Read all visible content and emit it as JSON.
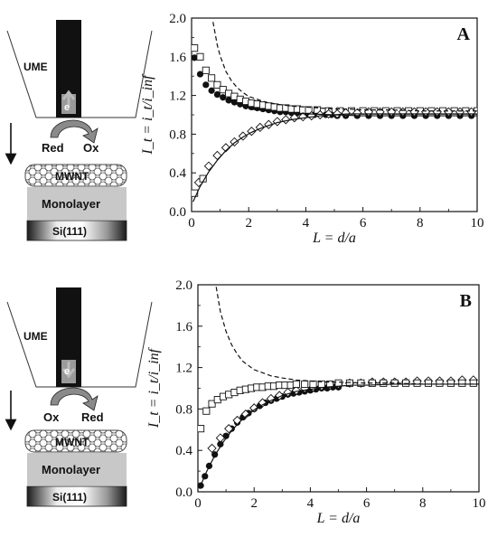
{
  "schematic_A": {
    "ume_label": "UME",
    "electron_label": "e",
    "reactant_label": "Red",
    "product_label": "Ox",
    "mwnt_label": "MWNT",
    "monolayer_label": "Monolayer",
    "substrate_label": "Si(111)"
  },
  "schematic_B": {
    "ume_label": "UME",
    "electron_label": "e",
    "reactant_label": "Ox",
    "product_label": "Red",
    "mwnt_label": "MWNT",
    "monolayer_label": "Monolayer",
    "substrate_label": "Si(111)"
  },
  "colors": {
    "ink": "#111111",
    "tip_gray": "#8a8a8a",
    "monolayer_gray": "#c8c8c8",
    "arrow_gray": "#7a7a7a"
  },
  "chart_data": [
    {
      "type": "scatter",
      "panel_label": "A",
      "xlabel": "L = d/a",
      "ylabel": "I_t = i_t/i_inf",
      "xlim": [
        0,
        10
      ],
      "ylim": [
        0,
        2.0
      ],
      "x_ticks": [
        0,
        2,
        4,
        6,
        8,
        10
      ],
      "y_ticks": [
        0.0,
        0.4,
        0.8,
        1.2,
        1.6,
        2.0
      ],
      "tick_labels_x": [
        "0",
        "2",
        "4",
        "6",
        "8",
        "10"
      ],
      "tick_labels_y": [
        "0.0",
        "0.4",
        "0.8",
        "1.2",
        "1.6",
        "2.0"
      ],
      "series": [
        {
          "marker": "filled-circle",
          "x": [
            0.1,
            0.3,
            0.5,
            0.7,
            0.9,
            1.1,
            1.3,
            1.5,
            1.7,
            1.9,
            2.1,
            2.3,
            2.5,
            2.7,
            2.9,
            3.1,
            3.3,
            3.5,
            3.7,
            3.9,
            4.1,
            4.3,
            4.5,
            4.7,
            4.9,
            5.1,
            5.4,
            5.8,
            6.2,
            6.6,
            7.0,
            7.4,
            7.8,
            8.2,
            8.6,
            9.0,
            9.4,
            9.8
          ],
          "y": [
            1.59,
            1.42,
            1.31,
            1.25,
            1.21,
            1.18,
            1.15,
            1.13,
            1.11,
            1.09,
            1.08,
            1.07,
            1.06,
            1.05,
            1.04,
            1.03,
            1.03,
            1.02,
            1.02,
            1.01,
            1.01,
            1.0,
            1.0,
            1.0,
            1.0,
            0.99,
            0.99,
            0.99,
            0.99,
            0.99,
            0.99,
            0.99,
            0.99,
            0.99,
            0.99,
            0.99,
            0.99,
            0.99
          ]
        },
        {
          "marker": "open-square",
          "x": [
            0.1,
            0.3,
            0.5,
            0.7,
            0.9,
            1.1,
            1.3,
            1.5,
            1.7,
            1.9,
            2.1,
            2.3,
            2.5,
            2.7,
            2.9,
            3.1,
            3.3,
            3.5,
            3.7,
            3.9,
            4.1,
            4.4,
            4.8,
            5.2,
            5.6,
            6.0,
            6.4,
            6.8,
            7.2,
            7.6,
            8.0,
            8.4,
            8.8,
            9.2,
            9.6,
            10.0
          ],
          "y": [
            1.69,
            1.6,
            1.46,
            1.38,
            1.31,
            1.26,
            1.22,
            1.19,
            1.16,
            1.14,
            1.12,
            1.11,
            1.1,
            1.09,
            1.08,
            1.07,
            1.07,
            1.06,
            1.06,
            1.05,
            1.05,
            1.05,
            1.04,
            1.04,
            1.04,
            1.04,
            1.04,
            1.04,
            1.04,
            1.04,
            1.04,
            1.04,
            1.04,
            1.04,
            1.04,
            1.04
          ]
        },
        {
          "marker": "open-diamond",
          "x": [
            0.25,
            0.6,
            0.9,
            1.2,
            1.5,
            1.8,
            2.1,
            2.4,
            2.7,
            3.0,
            3.3,
            3.6,
            3.9,
            4.2,
            4.5,
            4.8,
            5.1,
            5.4,
            5.8,
            6.2,
            6.6,
            7.0,
            7.4,
            7.8,
            8.2,
            8.6,
            9.0,
            9.4,
            9.8
          ],
          "y": [
            0.3,
            0.47,
            0.58,
            0.66,
            0.72,
            0.78,
            0.83,
            0.87,
            0.9,
            0.93,
            0.95,
            0.97,
            0.98,
            0.99,
            1.0,
            1.01,
            1.01,
            1.02,
            1.02,
            1.03,
            1.03,
            1.03,
            1.03,
            1.03,
            1.03,
            1.03,
            1.03,
            1.03,
            1.03
          ]
        },
        {
          "marker": "open-square",
          "x": [
            0.1,
            0.4
          ],
          "y": [
            0.19,
            0.34
          ]
        },
        {
          "marker": "dashed-line",
          "x": [
            0.75,
            0.9,
            1.0,
            1.2,
            1.4,
            1.6,
            1.8,
            2.0,
            2.3,
            2.6,
            3.0,
            3.5,
            4.0,
            4.5,
            5.0,
            5.5,
            6.0,
            7.0,
            8.0,
            9.0,
            10.0
          ],
          "y": [
            1.96,
            1.72,
            1.61,
            1.45,
            1.35,
            1.28,
            1.23,
            1.19,
            1.16,
            1.13,
            1.11,
            1.09,
            1.08,
            1.07,
            1.06,
            1.06,
            1.05,
            1.05,
            1.04,
            1.04,
            1.04
          ]
        },
        {
          "marker": "solid-line",
          "x": [
            0.05,
            0.3,
            0.6,
            0.9,
            1.2,
            1.5,
            1.8,
            2.1,
            2.5,
            3.0,
            3.5,
            4.0,
            4.5,
            5.0,
            5.5,
            6.0,
            7.0,
            8.0,
            9.0,
            10.0
          ],
          "y": [
            0.1,
            0.26,
            0.41,
            0.53,
            0.63,
            0.71,
            0.77,
            0.82,
            0.87,
            0.92,
            0.95,
            0.97,
            0.99,
            1.0,
            1.01,
            1.01,
            1.01,
            1.01,
            1.01,
            1.01
          ]
        },
        {
          "marker": "solid-line",
          "x": [
            2.0,
            3.0,
            4.0,
            5.0,
            6.0,
            7.0,
            8.0,
            9.0,
            10.0
          ],
          "y": [
            1.06,
            1.03,
            1.01,
            1.0,
            0.99,
            0.99,
            0.99,
            0.99,
            0.99
          ]
        }
      ]
    },
    {
      "type": "scatter",
      "panel_label": "B",
      "xlabel": "L = d/a",
      "ylabel": "I_t = i_t/i_inf",
      "xlim": [
        0,
        10
      ],
      "ylim": [
        0,
        2.0
      ],
      "x_ticks": [
        0,
        2,
        4,
        6,
        8,
        10
      ],
      "y_ticks": [
        0.0,
        0.4,
        0.8,
        1.2,
        1.6,
        2.0
      ],
      "tick_labels_x": [
        "0",
        "2",
        "4",
        "6",
        "8",
        "10"
      ],
      "tick_labels_y": [
        "0.0",
        "0.4",
        "0.8",
        "1.2",
        "1.6",
        "2.0"
      ],
      "series": [
        {
          "marker": "filled-circle",
          "x": [
            0.1,
            0.25,
            0.4,
            0.6,
            0.8,
            1.0,
            1.2,
            1.4,
            1.6,
            1.8,
            2.0,
            2.2,
            2.4,
            2.6,
            2.8,
            3.0,
            3.2,
            3.4,
            3.6,
            3.8,
            4.0,
            4.2,
            4.4,
            4.6,
            4.8,
            5.0
          ],
          "y": [
            0.06,
            0.15,
            0.25,
            0.36,
            0.46,
            0.54,
            0.61,
            0.67,
            0.72,
            0.76,
            0.8,
            0.83,
            0.86,
            0.88,
            0.9,
            0.92,
            0.94,
            0.95,
            0.96,
            0.97,
            0.98,
            0.99,
            1.0,
            1.0,
            1.01,
            1.01
          ]
        },
        {
          "marker": "open-diamond",
          "x": [
            0.5,
            0.8,
            1.1,
            1.4,
            1.7,
            2.0,
            2.3,
            2.6,
            2.9,
            3.2,
            3.5,
            3.8,
            4.1,
            4.4,
            4.7,
            5.0,
            5.4,
            5.8,
            6.2,
            6.6,
            7.0,
            7.4,
            7.8,
            8.2,
            8.6,
            9.0,
            9.4,
            9.8
          ],
          "y": [
            0.42,
            0.52,
            0.61,
            0.69,
            0.75,
            0.81,
            0.86,
            0.9,
            0.93,
            0.96,
            0.98,
            1.0,
            1.01,
            1.02,
            1.03,
            1.04,
            1.05,
            1.05,
            1.06,
            1.06,
            1.06,
            1.06,
            1.07,
            1.07,
            1.07,
            1.07,
            1.08,
            1.08
          ]
        },
        {
          "marker": "open-square",
          "x": [
            0.1,
            0.3,
            0.5,
            0.7,
            0.9,
            1.1,
            1.3,
            1.5,
            1.7,
            1.9,
            2.1,
            2.3,
            2.5,
            2.7,
            2.9,
            3.1,
            3.3,
            3.5,
            3.8,
            4.1,
            4.4,
            4.7,
            5.0,
            5.4,
            5.8,
            6.2,
            6.6,
            7.0,
            7.4,
            7.8,
            8.2,
            8.6,
            9.0,
            9.4,
            9.8
          ],
          "y": [
            0.61,
            0.78,
            0.85,
            0.89,
            0.92,
            0.94,
            0.96,
            0.98,
            0.99,
            1.0,
            1.01,
            1.01,
            1.02,
            1.02,
            1.03,
            1.03,
            1.03,
            1.04,
            1.04,
            1.04,
            1.04,
            1.04,
            1.05,
            1.05,
            1.05,
            1.05,
            1.05,
            1.05,
            1.05,
            1.05,
            1.05,
            1.05,
            1.05,
            1.05,
            1.05
          ]
        },
        {
          "marker": "dashed-line",
          "x": [
            0.65,
            0.8,
            1.0,
            1.2,
            1.4,
            1.6,
            1.8,
            2.0,
            2.3,
            2.6,
            3.0,
            3.5,
            4.0,
            4.5,
            5.0,
            6.0,
            7.0,
            8.0,
            9.0,
            10.0
          ],
          "y": [
            1.98,
            1.74,
            1.55,
            1.42,
            1.33,
            1.26,
            1.22,
            1.18,
            1.15,
            1.12,
            1.1,
            1.08,
            1.07,
            1.06,
            1.06,
            1.05,
            1.05,
            1.04,
            1.04,
            1.04
          ]
        },
        {
          "marker": "solid-line",
          "x": [
            0.05,
            0.3,
            0.6,
            0.9,
            1.2,
            1.5,
            1.8,
            2.1,
            2.5,
            3.0,
            3.5,
            4.0,
            4.5,
            5.0,
            5.5,
            6.0,
            7.0,
            8.0,
            9.0,
            10.0
          ],
          "y": [
            0.03,
            0.19,
            0.35,
            0.48,
            0.59,
            0.68,
            0.75,
            0.81,
            0.87,
            0.93,
            0.97,
            0.99,
            1.01,
            1.02,
            1.03,
            1.03,
            1.04,
            1.04,
            1.04,
            1.04
          ]
        }
      ]
    }
  ]
}
